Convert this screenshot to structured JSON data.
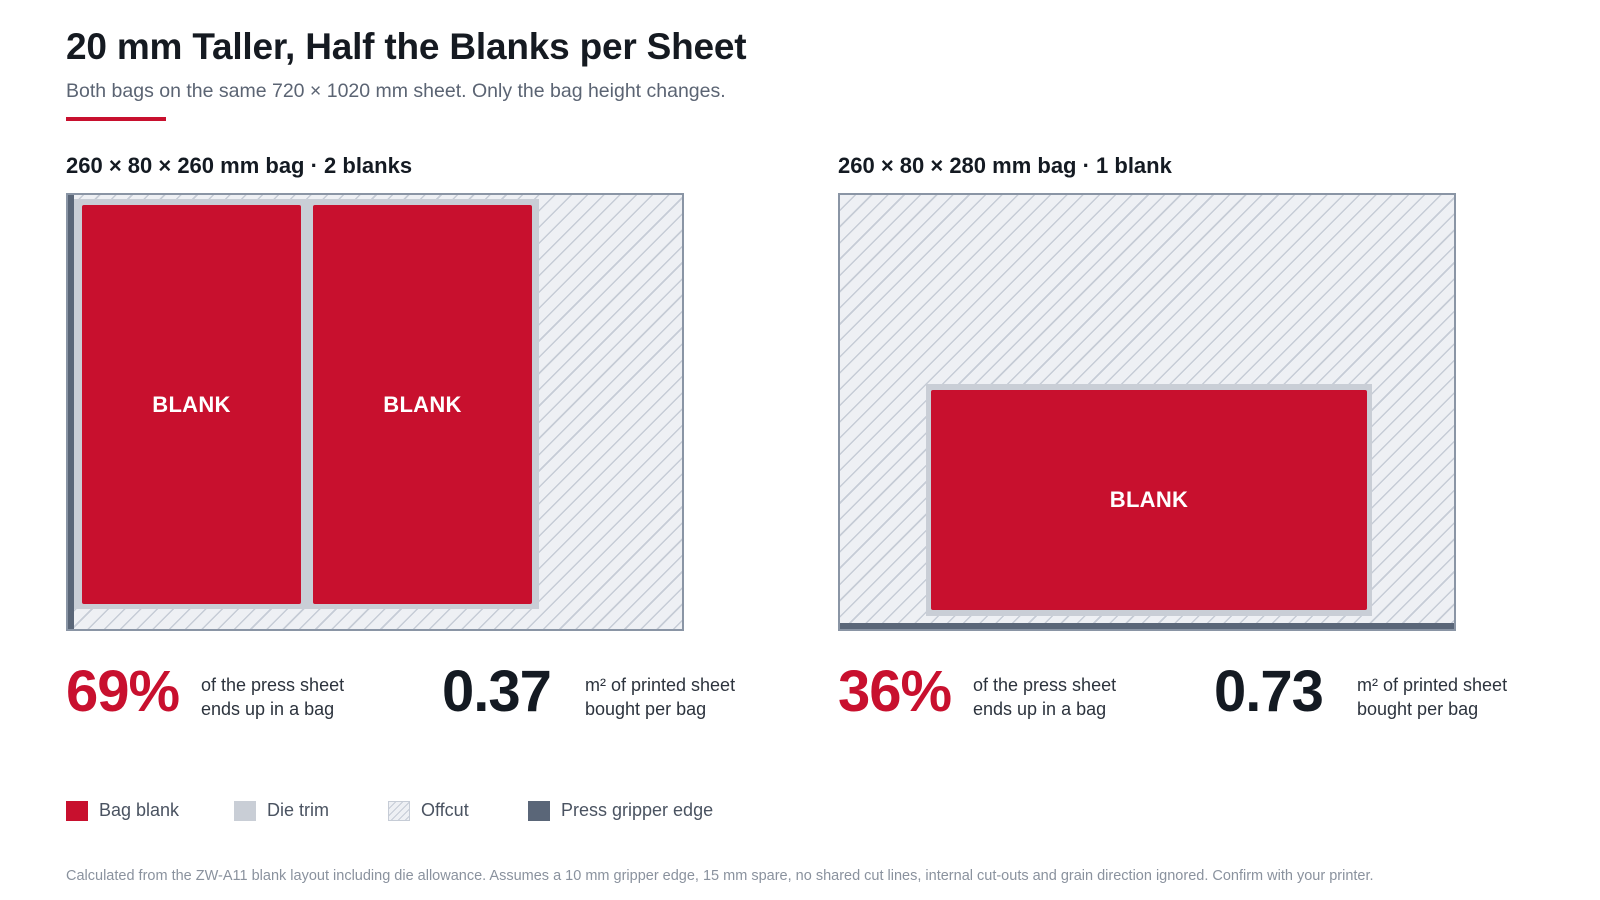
{
  "header": {
    "title": "20 mm Taller, Half the Blanks per Sheet",
    "subtitle": "Both bags on the same 720 × 1020 mm sheet. Only the bag height changes."
  },
  "panels": [
    {
      "heading": "260 × 80 × 260 mm bag · 2 blanks",
      "blank_label": "BLANK",
      "blank_count": 2,
      "gripper_edge": "left",
      "stats": {
        "usage_pct": "69%",
        "usage_caption_1": "of the press sheet",
        "usage_caption_2": "ends up in a bag",
        "area": "0.37",
        "area_caption_1": "m² of printed sheet",
        "area_caption_2": "bought per bag"
      }
    },
    {
      "heading": "260 × 80 × 280 mm bag · 1 blank",
      "blank_label": "BLANK",
      "blank_count": 1,
      "gripper_edge": "bottom",
      "stats": {
        "usage_pct": "36%",
        "usage_caption_1": "of the press sheet",
        "usage_caption_2": "ends up in a bag",
        "area": "0.73",
        "area_caption_1": "m² of printed sheet",
        "area_caption_2": "bought per bag"
      }
    }
  ],
  "legend": {
    "bag_blank": "Bag blank",
    "die_trim": "Die trim",
    "offcut": "Offcut",
    "gripper": "Press gripper edge"
  },
  "footnote": "Calculated from the ZW-A11 blank layout including die allowance. Assumes a 10 mm gripper edge, 15 mm spare, no shared cut lines, internal cut-outs and grain direction ignored. Confirm with your printer.",
  "colors": {
    "accent": "#c8102e",
    "die_trim": "#c9ced6",
    "offcut": "#eef0f4",
    "gripper": "#5a6678",
    "sheet_border": "#8a95a5"
  }
}
